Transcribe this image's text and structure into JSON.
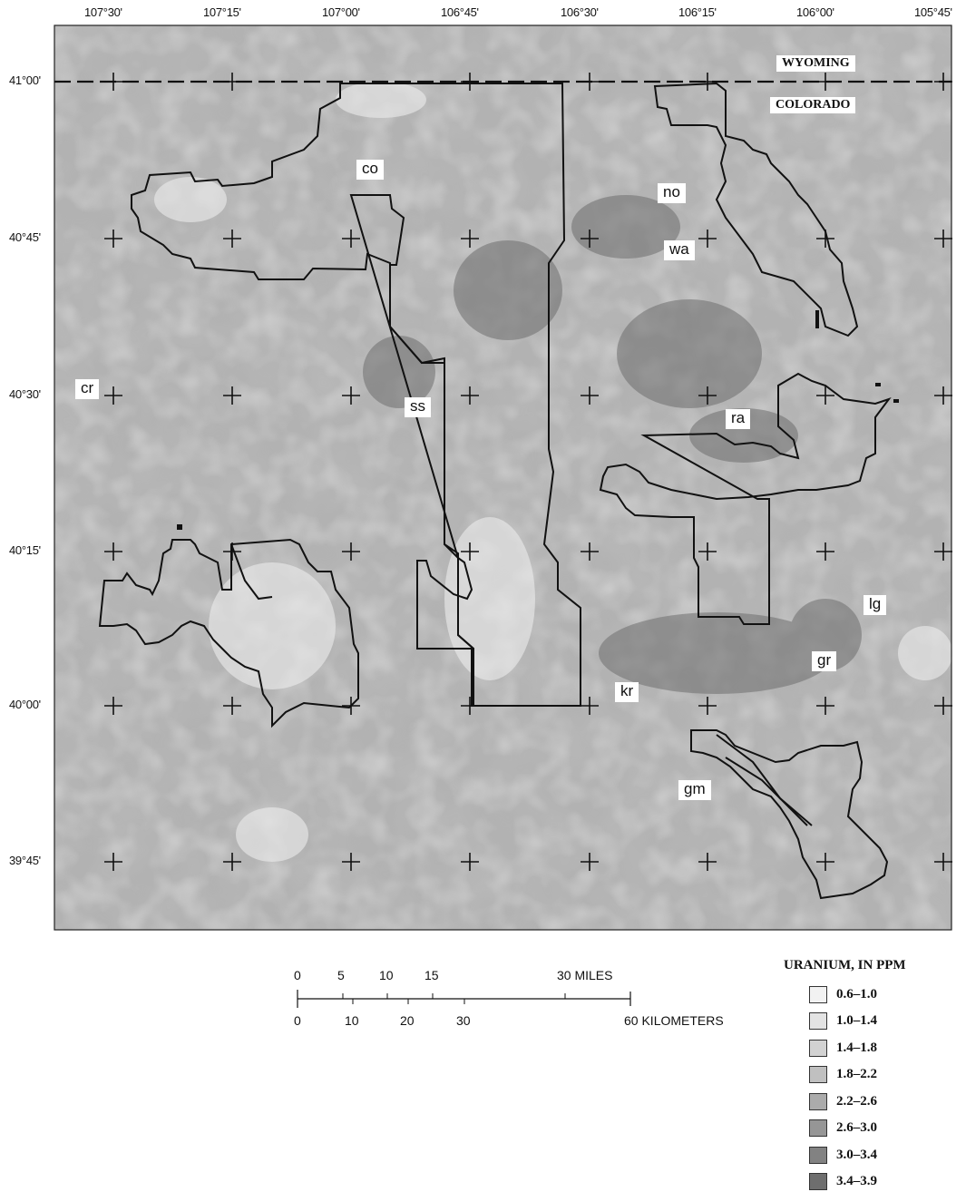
{
  "map": {
    "states": {
      "north": "WYOMING",
      "south": "COLORADO"
    },
    "longitude_ticks": [
      "107°30'",
      "107°15'",
      "107°00'",
      "106°45'",
      "106°30'",
      "106°15'",
      "106°00'",
      "105°45'"
    ],
    "latitude_ticks": [
      "41°00'",
      "40°45'",
      "40°30'",
      "40°15'",
      "40°00'",
      "39°45'"
    ],
    "area_labels": {
      "co": "co",
      "no": "no",
      "wa": "wa",
      "cr": "cr",
      "ss": "ss",
      "ra": "ra",
      "lg": "lg",
      "gr": "gr",
      "kr": "kr",
      "gm": "gm"
    }
  },
  "scale_bar": {
    "miles_ticks": [
      "0",
      "5",
      "10",
      "15",
      "30 MILES"
    ],
    "km_ticks": [
      "0",
      "10",
      "20",
      "30",
      "60 KILOMETERS"
    ]
  },
  "legend": {
    "title": "URANIUM, IN PPM",
    "classes": [
      {
        "label": "0.6–1.0",
        "color": "#f2f2f2"
      },
      {
        "label": "1.0–1.4",
        "color": "#e3e3e3"
      },
      {
        "label": "1.4–1.8",
        "color": "#d2d2d2"
      },
      {
        "label": "1.8–2.2",
        "color": "#c0c0c0"
      },
      {
        "label": "2.2–2.6",
        "color": "#ababab"
      },
      {
        "label": "2.6–3.0",
        "color": "#969696"
      },
      {
        "label": "3.0–3.4",
        "color": "#828282"
      },
      {
        "label": "3.4–3.9",
        "color": "#6e6e6e"
      }
    ]
  }
}
